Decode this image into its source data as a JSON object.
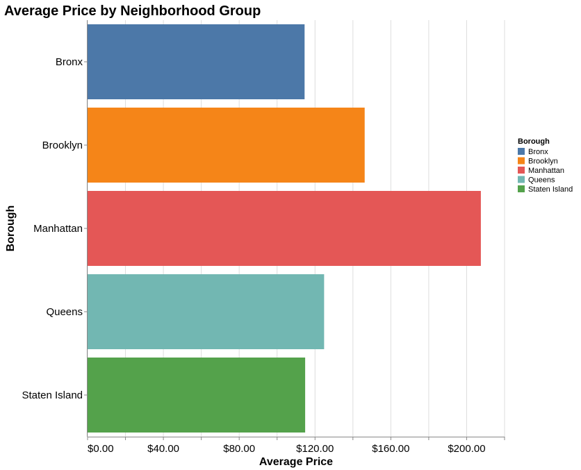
{
  "chart_data": {
    "type": "bar",
    "orientation": "horizontal",
    "title": "Average Price by Neighborhood Group",
    "xlabel": "Average Price",
    "ylabel": "Borough",
    "categories": [
      "Bronx",
      "Brooklyn",
      "Manhattan",
      "Queens",
      "Staten Island"
    ],
    "values": [
      114.5,
      146.2,
      207.5,
      124.8,
      114.8
    ],
    "colors": [
      "#4c78a8",
      "#f58518",
      "#e45756",
      "#72b7b2",
      "#54a24b"
    ],
    "xlim": [
      0,
      220
    ],
    "x_ticks": [
      0,
      40,
      80,
      120,
      160,
      200
    ],
    "x_tick_labels": [
      "$0.00",
      "$40.00",
      "$80.00",
      "$120.00",
      "$160.00",
      "$200.00"
    ],
    "grid": true,
    "legend": {
      "title": "Borough",
      "position": "top-right",
      "entries": [
        "Bronx",
        "Brooklyn",
        "Manhattan",
        "Queens",
        "Staten Island"
      ]
    }
  }
}
